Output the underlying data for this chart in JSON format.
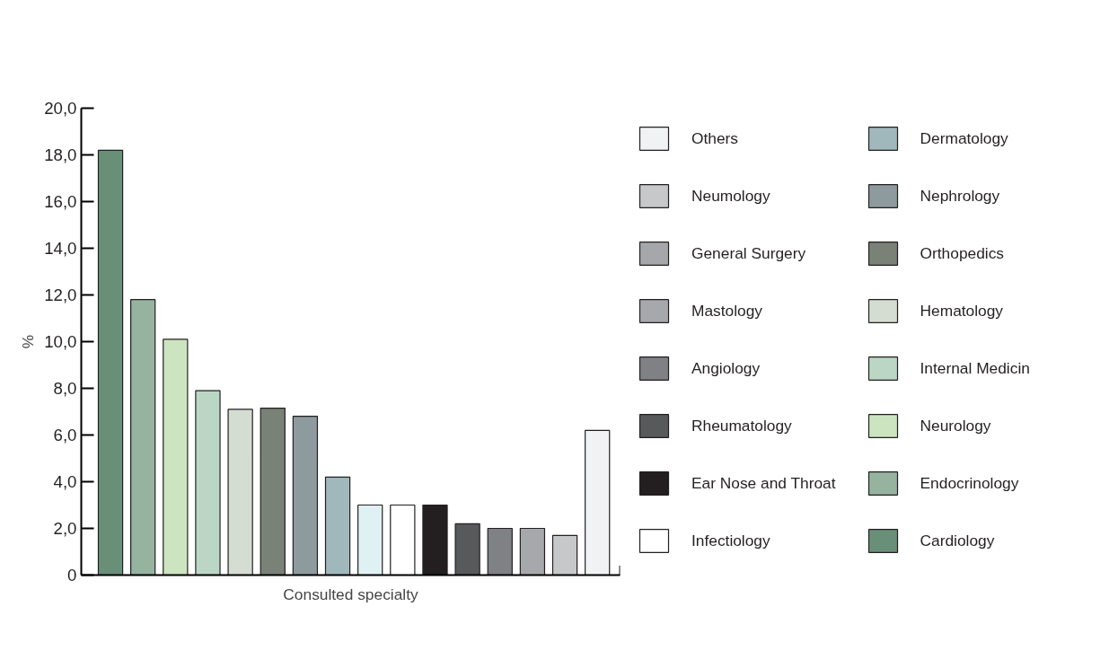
{
  "chart_data": {
    "type": "bar",
    "xlabel": "Consulted specialty",
    "ylabel": "%",
    "categories": [
      null,
      null,
      null,
      null,
      null,
      null,
      null,
      null,
      null,
      null,
      null,
      null,
      null,
      null,
      null,
      null
    ],
    "ylim": [
      0,
      20
    ],
    "yticks": [
      0,
      {
        "value": 2,
        "label": "2,0"
      },
      {
        "value": 4,
        "label": "4,0"
      },
      {
        "value": 6,
        "label": "6,0"
      },
      {
        "value": 8,
        "label": "8,0"
      },
      {
        "value": 10,
        "label": "10,0"
      },
      {
        "value": 12,
        "label": "12,0"
      },
      {
        "value": 14,
        "label": "14,0"
      },
      {
        "value": 16,
        "label": "16,0"
      },
      {
        "value": 18,
        "label": "18,0"
      },
      {
        "value": 20,
        "label": "20,0"
      }
    ],
    "legend": "right",
    "series": [
      {
        "name": "Cardiology",
        "color": "#698f78",
        "values": [
          18.2,
          null,
          null,
          null,
          null,
          null,
          null,
          null,
          null,
          null,
          null,
          null,
          null,
          null,
          null,
          null
        ]
      },
      {
        "name": "Endocrinology",
        "color": "#96b3a0",
        "values": [
          null,
          11.8,
          null,
          null,
          null,
          null,
          null,
          null,
          null,
          null,
          null,
          null,
          null,
          null,
          null,
          null
        ]
      },
      {
        "name": "Neurology",
        "color": "#cce4bf",
        "values": [
          null,
          null,
          10.1,
          null,
          null,
          null,
          null,
          null,
          null,
          null,
          null,
          null,
          null,
          null,
          null,
          null
        ]
      },
      {
        "name": "Internal Medicin",
        "color": "#bbd6c5",
        "values": [
          null,
          null,
          null,
          7.9,
          null,
          null,
          null,
          null,
          null,
          null,
          null,
          null,
          null,
          null,
          null,
          null
        ]
      },
      {
        "name": "Hematology",
        "color": "#d5ddd2",
        "values": [
          null,
          null,
          null,
          null,
          7.1,
          null,
          null,
          null,
          null,
          null,
          null,
          null,
          null,
          null,
          null,
          null
        ]
      },
      {
        "name": "Orthopedics",
        "color": "#7a8177",
        "values": [
          null,
          null,
          null,
          null,
          null,
          7.15,
          null,
          null,
          null,
          null,
          null,
          null,
          null,
          null,
          null,
          null
        ]
      },
      {
        "name": "Nephrology",
        "color": "#8d9b9f",
        "values": [
          null,
          null,
          null,
          null,
          null,
          null,
          6.8,
          null,
          null,
          null,
          null,
          null,
          null,
          null,
          null,
          null
        ]
      },
      {
        "name": "Dermatology",
        "color": "#a0b8bb",
        "values": [
          null,
          null,
          null,
          null,
          null,
          null,
          null,
          4.2,
          null,
          null,
          null,
          null,
          null,
          null,
          null,
          null
        ]
      },
      {
        "color": "#e0f1f4",
        "values": [
          null,
          null,
          null,
          null,
          null,
          null,
          null,
          null,
          3.0,
          null,
          null,
          null,
          null,
          null,
          null,
          null
        ]
      },
      {
        "name": "Infectiology",
        "color": "#ffffff",
        "values": [
          null,
          null,
          null,
          null,
          null,
          null,
          null,
          null,
          null,
          3.0,
          null,
          null,
          null,
          null,
          null,
          null
        ]
      },
      {
        "name": "Ear Nose and Throat",
        "color": "#231f20",
        "values": [
          null,
          null,
          null,
          null,
          null,
          null,
          null,
          null,
          null,
          null,
          3.0,
          null,
          null,
          null,
          null,
          null
        ]
      },
      {
        "name": "Rheumatology",
        "color": "#58595b",
        "values": [
          null,
          null,
          null,
          null,
          null,
          null,
          null,
          null,
          null,
          null,
          null,
          2.2,
          null,
          null,
          null,
          null
        ]
      },
      {
        "name": "Angiology",
        "color": "#808184",
        "values": [
          null,
          null,
          null,
          null,
          null,
          null,
          null,
          null,
          null,
          null,
          null,
          null,
          2.0,
          null,
          null,
          null
        ]
      },
      {
        "name": "Mastology",
        "color": "#a7a8ac",
        "values": [
          null,
          null,
          null,
          null,
          null,
          null,
          null,
          null,
          null,
          null,
          null,
          null,
          null,
          2.0,
          null,
          null
        ]
      },
      {
        "name": "General Surgery",
        "color": "#a6a7ab",
        "values": [
          null,
          null,
          null,
          null,
          null,
          null,
          null,
          null,
          null,
          null,
          null,
          null,
          null,
          null,
          null,
          null
        ]
      },
      {
        "name": "Neumology",
        "color": "#c7c8ca",
        "values": [
          null,
          null,
          null,
          null,
          null,
          null,
          null,
          null,
          null,
          null,
          null,
          null,
          null,
          null,
          1.7,
          null
        ]
      },
      {
        "name": "Others",
        "color": "#f1f2f3",
        "values": [
          null,
          null,
          null,
          null,
          null,
          null,
          null,
          null,
          null,
          null,
          null,
          null,
          null,
          null,
          null,
          6.2
        ]
      }
    ]
  }
}
